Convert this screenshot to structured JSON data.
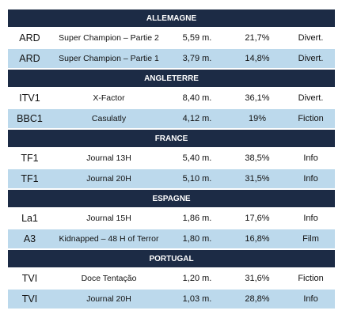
{
  "sections": [
    {
      "country": "ALLEMAGNE",
      "rows": [
        {
          "channel": "ARD",
          "program": "Super Champion – Partie 2",
          "viewers": "5,59 m.",
          "share": "21,7%",
          "genre": "Divert."
        },
        {
          "channel": "ARD",
          "program": "Super Champion – Partie 1",
          "viewers": "3,79 m.",
          "share": "14,8%",
          "genre": "Divert."
        }
      ]
    },
    {
      "country": "ANGLETERRE",
      "rows": [
        {
          "channel": "ITV1",
          "program": "X-Factor",
          "viewers": "8,40 m.",
          "share": "36,1%",
          "genre": "Divert."
        },
        {
          "channel": "BBC1",
          "program": "Casulatly",
          "viewers": "4,12 m.",
          "share": "19%",
          "genre": "Fiction"
        }
      ]
    },
    {
      "country": "FRANCE",
      "rows": [
        {
          "channel": "TF1",
          "program": "Journal 13H",
          "viewers": "5,40 m.",
          "share": "38,5%",
          "genre": "Info"
        },
        {
          "channel": "TF1",
          "program": "Journal 20H",
          "viewers": "5,10 m.",
          "share": "31,5%",
          "genre": "Info"
        }
      ]
    },
    {
      "country": "ESPAGNE",
      "rows": [
        {
          "channel": "La1",
          "program": "Journal 15H",
          "viewers": "1,86 m.",
          "share": "17,6%",
          "genre": "Info"
        },
        {
          "channel": "A3",
          "program": "Kidnapped – 48 H of Terror",
          "viewers": "1,80 m.",
          "share": "16,8%",
          "genre": "Film"
        }
      ]
    },
    {
      "country": "PORTUGAL",
      "rows": [
        {
          "channel": "TVI",
          "program": "Doce Tentação",
          "viewers": "1,20 m.",
          "share": "31,6%",
          "genre": "Fiction"
        },
        {
          "channel": "TVI",
          "program": "Journal 20H",
          "viewers": "1,03 m.",
          "share": "28,8%",
          "genre": "Info"
        }
      ]
    }
  ]
}
